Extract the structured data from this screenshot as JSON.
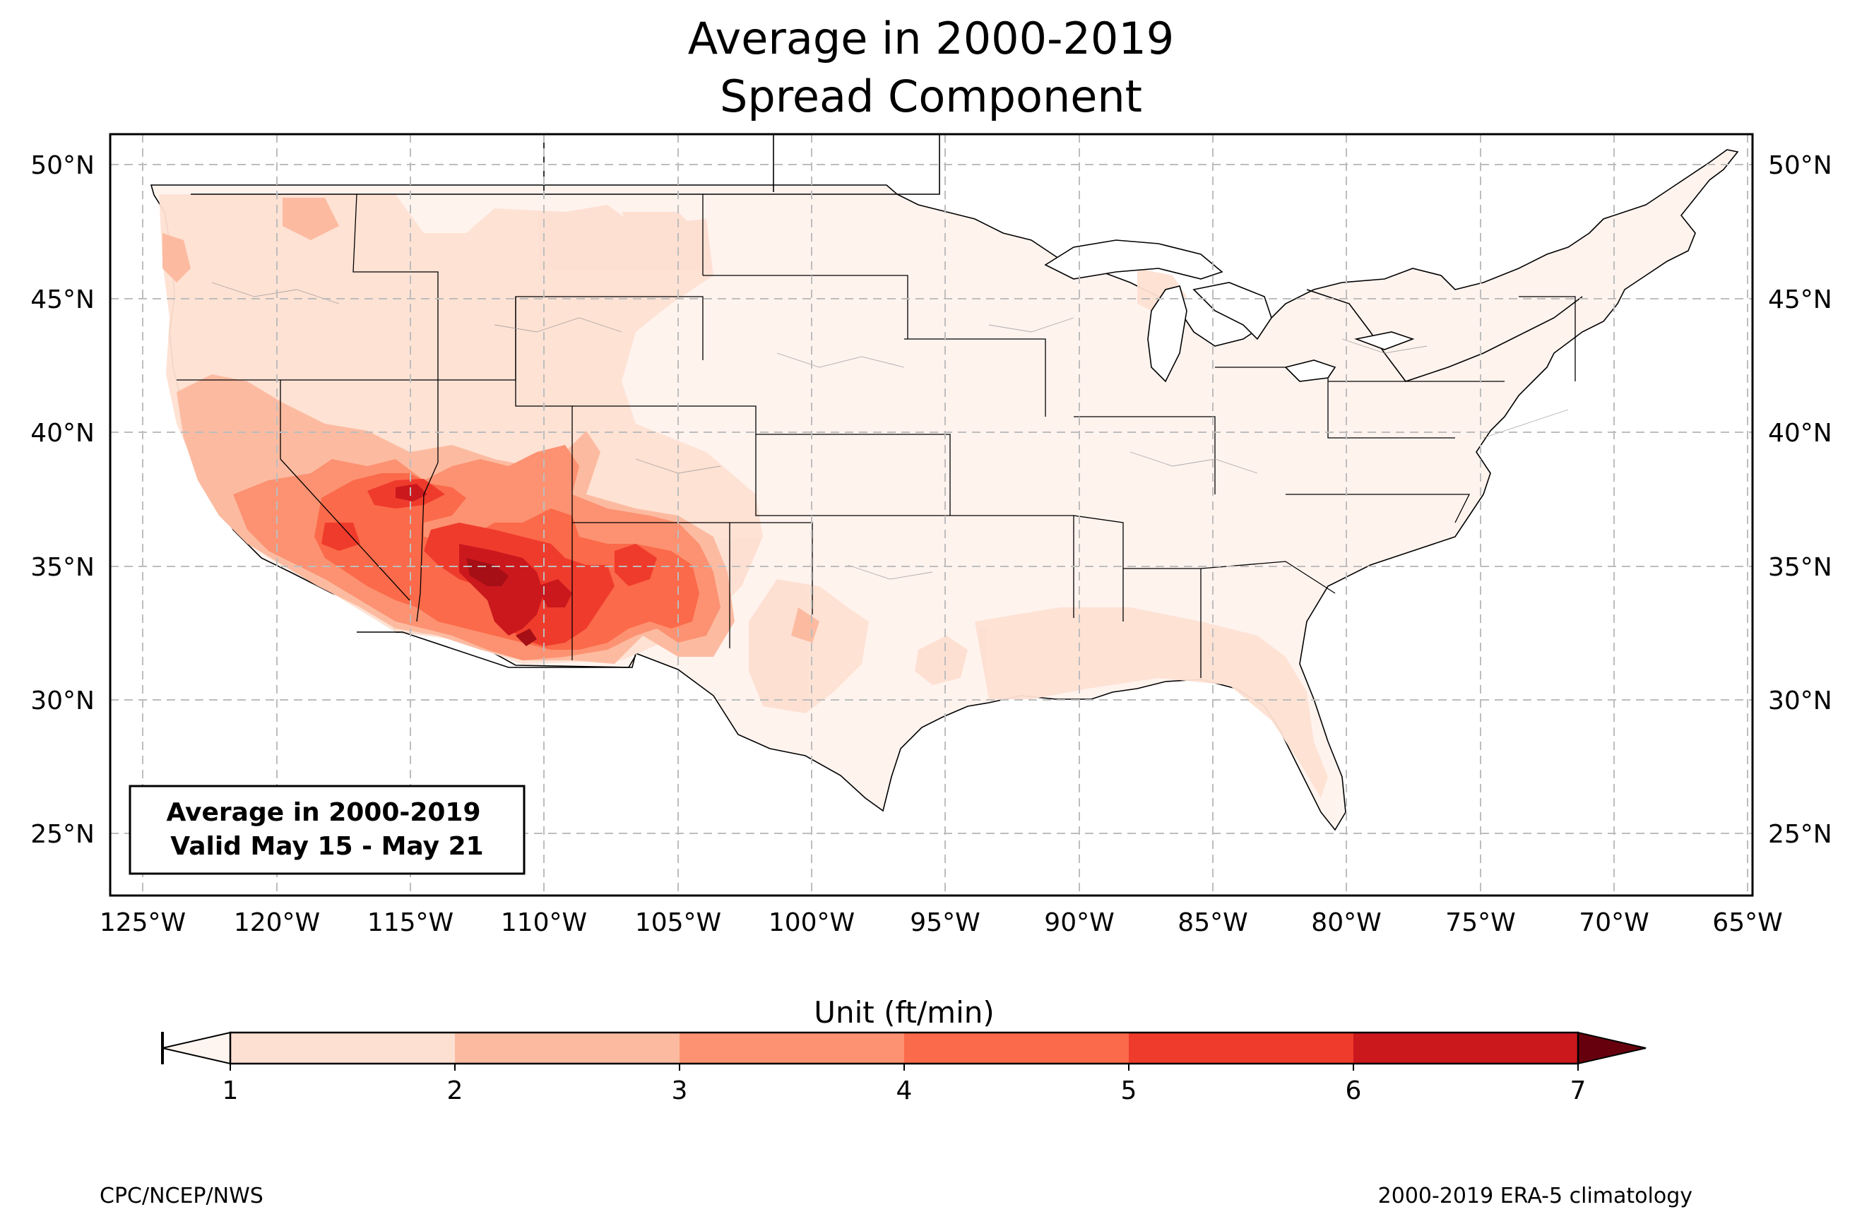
{
  "title": {
    "line1": "Average in 2000-2019",
    "line2": "Spread Component"
  },
  "map": {
    "projection": "lat-lon (plate carree)",
    "extent": {
      "lon": [
        -126.3,
        -64.9
      ],
      "lat": [
        22.7,
        51.2
      ]
    },
    "gridlines": "dashed grey",
    "lat_labels": [
      "50°N",
      "45°N",
      "40°N",
      "35°N",
      "30°N",
      "25°N"
    ],
    "lat_values": [
      50,
      45,
      40,
      35,
      30,
      25
    ],
    "lon_labels": [
      "125°W",
      "120°W",
      "115°W",
      "110°W",
      "105°W",
      "100°W",
      "95°W",
      "90°W",
      "85°W",
      "80°W",
      "75°W",
      "70°W",
      "65°W"
    ],
    "lon_values": [
      -125,
      -120,
      -115,
      -110,
      -105,
      -100,
      -95,
      -90,
      -85,
      -80,
      -75,
      -70,
      -65
    ],
    "field": "Spread Component average, highest over the Four Corners / Arizona–New Mexico region"
  },
  "inset": {
    "line1": "Average in 2000-2019",
    "line2": "Valid May 15 - May 21"
  },
  "colorbar": {
    "label": "Unit (ft/min)",
    "ticks": [
      "1",
      "2",
      "3",
      "4",
      "5",
      "6",
      "7"
    ],
    "colors": [
      "#fee0d2",
      "#fcbba1",
      "#fc9272",
      "#fb6a4a",
      "#ef3b2c",
      "#cb181d",
      "#a50f15"
    ],
    "under_color": "#fff5f0",
    "over_color": "#67000d",
    "extend": "both"
  },
  "footer": {
    "left": "CPC/NCEP/NWS",
    "right": "2000-2019 ERA-5 climatology"
  }
}
